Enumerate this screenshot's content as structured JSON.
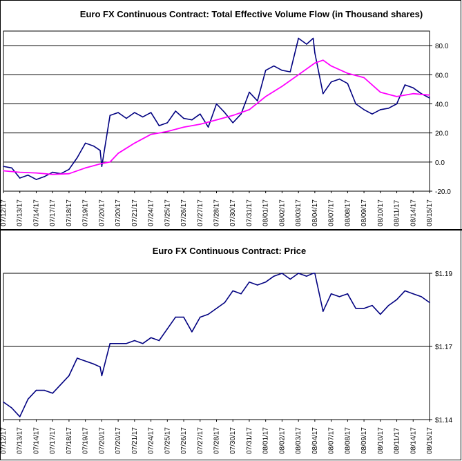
{
  "chart_data": [
    {
      "type": "line",
      "title": "Euro FX Continuous Contract: Total Effective Volume Flow (in Thousand shares)",
      "xlabel": "",
      "ylabel": "",
      "ylim": [
        -20,
        90
      ],
      "yticks": [
        "-20.0",
        "0.0",
        "20.0",
        "40.0",
        "60.0",
        "80.0"
      ],
      "ytick_values": [
        -20,
        0,
        20,
        40,
        60,
        80
      ],
      "categories": [
        "07/12/17",
        "07/13/17",
        "07/14/17",
        "07/17/17",
        "07/18/17",
        "07/19/17",
        "07/20/17",
        "07/20/17",
        "07/21/17",
        "07/24/17",
        "07/25/17",
        "07/26/17",
        "07/27/17",
        "07/28/17",
        "07/30/17",
        "07/31/17",
        "08/01/17",
        "08/02/17",
        "08/03/17",
        "08/04/17",
        "08/07/17",
        "08/08/17",
        "08/09/17",
        "08/10/17",
        "08/11/17",
        "08/14/17",
        "08/15/17"
      ],
      "grid": "horizontal",
      "series": [
        {
          "color": "#000080",
          "x": [
            0,
            0.5,
            1,
            1.5,
            2,
            2.5,
            3,
            3.5,
            4,
            4.5,
            5,
            5.5,
            5.9,
            6,
            6.5,
            7,
            7.5,
            8,
            8.5,
            9,
            9.5,
            10,
            10.5,
            11,
            11.5,
            12,
            12.5,
            13,
            13.5,
            14,
            14.5,
            15,
            15.5,
            16,
            16.5,
            17,
            17.5,
            18,
            18.5,
            18.9,
            19,
            19.5,
            20,
            20.5,
            21,
            21.5,
            22,
            22.5,
            23,
            23.5,
            24,
            24.5,
            25,
            25.5,
            26
          ],
          "values": [
            -3,
            -4,
            -11,
            -9,
            -12,
            -10,
            -7,
            -8,
            -5,
            3,
            13,
            11,
            8,
            -3,
            32,
            34,
            30,
            34,
            31,
            34,
            25,
            27,
            35,
            30,
            29,
            33,
            24,
            40,
            34,
            27,
            33,
            48,
            42,
            63,
            66,
            63,
            62,
            85,
            81,
            85,
            75,
            47,
            55,
            57,
            54,
            40,
            36,
            33,
            36,
            37,
            40,
            53,
            51,
            47,
            44
          ]
        },
        {
          "color": "#ff00ff",
          "x": [
            0,
            1,
            2,
            3,
            4,
            5,
            6,
            6.5,
            7,
            8,
            9,
            10,
            11,
            12,
            13,
            14,
            15,
            16,
            17,
            18,
            19,
            19.5,
            20,
            21,
            22,
            23,
            24,
            25,
            26
          ],
          "values": [
            -6,
            -7,
            -7.5,
            -8.5,
            -8,
            -4,
            -1,
            0,
            6,
            13,
            19,
            21,
            24,
            26,
            29,
            32,
            36,
            45,
            52,
            60,
            68,
            70,
            66,
            61,
            58,
            48,
            45,
            47,
            46
          ]
        }
      ]
    },
    {
      "type": "line",
      "title": "Euro FX Continuous Contract: Price",
      "xlabel": "",
      "ylabel": "",
      "ylim": [
        1.14,
        1.19
      ],
      "yticks": [
        "$1.14",
        "$1.17",
        "$1.19"
      ],
      "ytick_values": [
        1.14,
        1.165,
        1.19
      ],
      "categories": [
        "07/12/17",
        "07/13/17",
        "07/14/17",
        "07/17/17",
        "07/18/17",
        "07/19/17",
        "07/20/17",
        "07/20/17",
        "07/21/17",
        "07/24/17",
        "07/25/17",
        "07/26/17",
        "07/27/17",
        "07/28/17",
        "07/30/17",
        "07/31/17",
        "08/01/17",
        "08/02/17",
        "08/03/17",
        "08/04/17",
        "08/07/17",
        "08/08/17",
        "08/09/17",
        "08/10/17",
        "08/11/17",
        "08/14/17",
        "08/15/17"
      ],
      "grid": "horizontal",
      "series": [
        {
          "color": "#000080",
          "x": [
            0,
            0.5,
            1,
            1.5,
            2,
            2.5,
            3,
            3.5,
            4,
            4.5,
            5,
            5.5,
            5.9,
            6,
            6.5,
            7,
            7.5,
            8,
            8.5,
            9,
            9.5,
            10,
            10.5,
            11,
            11.5,
            12,
            12.5,
            13,
            13.5,
            14,
            14.5,
            15,
            15.5,
            16,
            16.5,
            17,
            17.5,
            18,
            18.5,
            18.9,
            19,
            19.5,
            20,
            20.5,
            21,
            21.5,
            22,
            22.5,
            23,
            23.5,
            24,
            24.5,
            25,
            25.5,
            26
          ],
          "values": [
            1.146,
            1.144,
            1.141,
            1.147,
            1.15,
            1.15,
            1.149,
            1.152,
            1.155,
            1.161,
            1.16,
            1.159,
            1.158,
            1.155,
            1.166,
            1.166,
            1.166,
            1.167,
            1.166,
            1.168,
            1.167,
            1.171,
            1.175,
            1.175,
            1.17,
            1.175,
            1.176,
            1.178,
            1.18,
            1.184,
            1.183,
            1.187,
            1.186,
            1.187,
            1.189,
            1.19,
            1.188,
            1.19,
            1.189,
            1.19,
            1.19,
            1.177,
            1.183,
            1.182,
            1.183,
            1.178,
            1.178,
            1.179,
            1.176,
            1.179,
            1.181,
            1.184,
            1.183,
            1.182,
            1.18
          ]
        }
      ]
    }
  ]
}
